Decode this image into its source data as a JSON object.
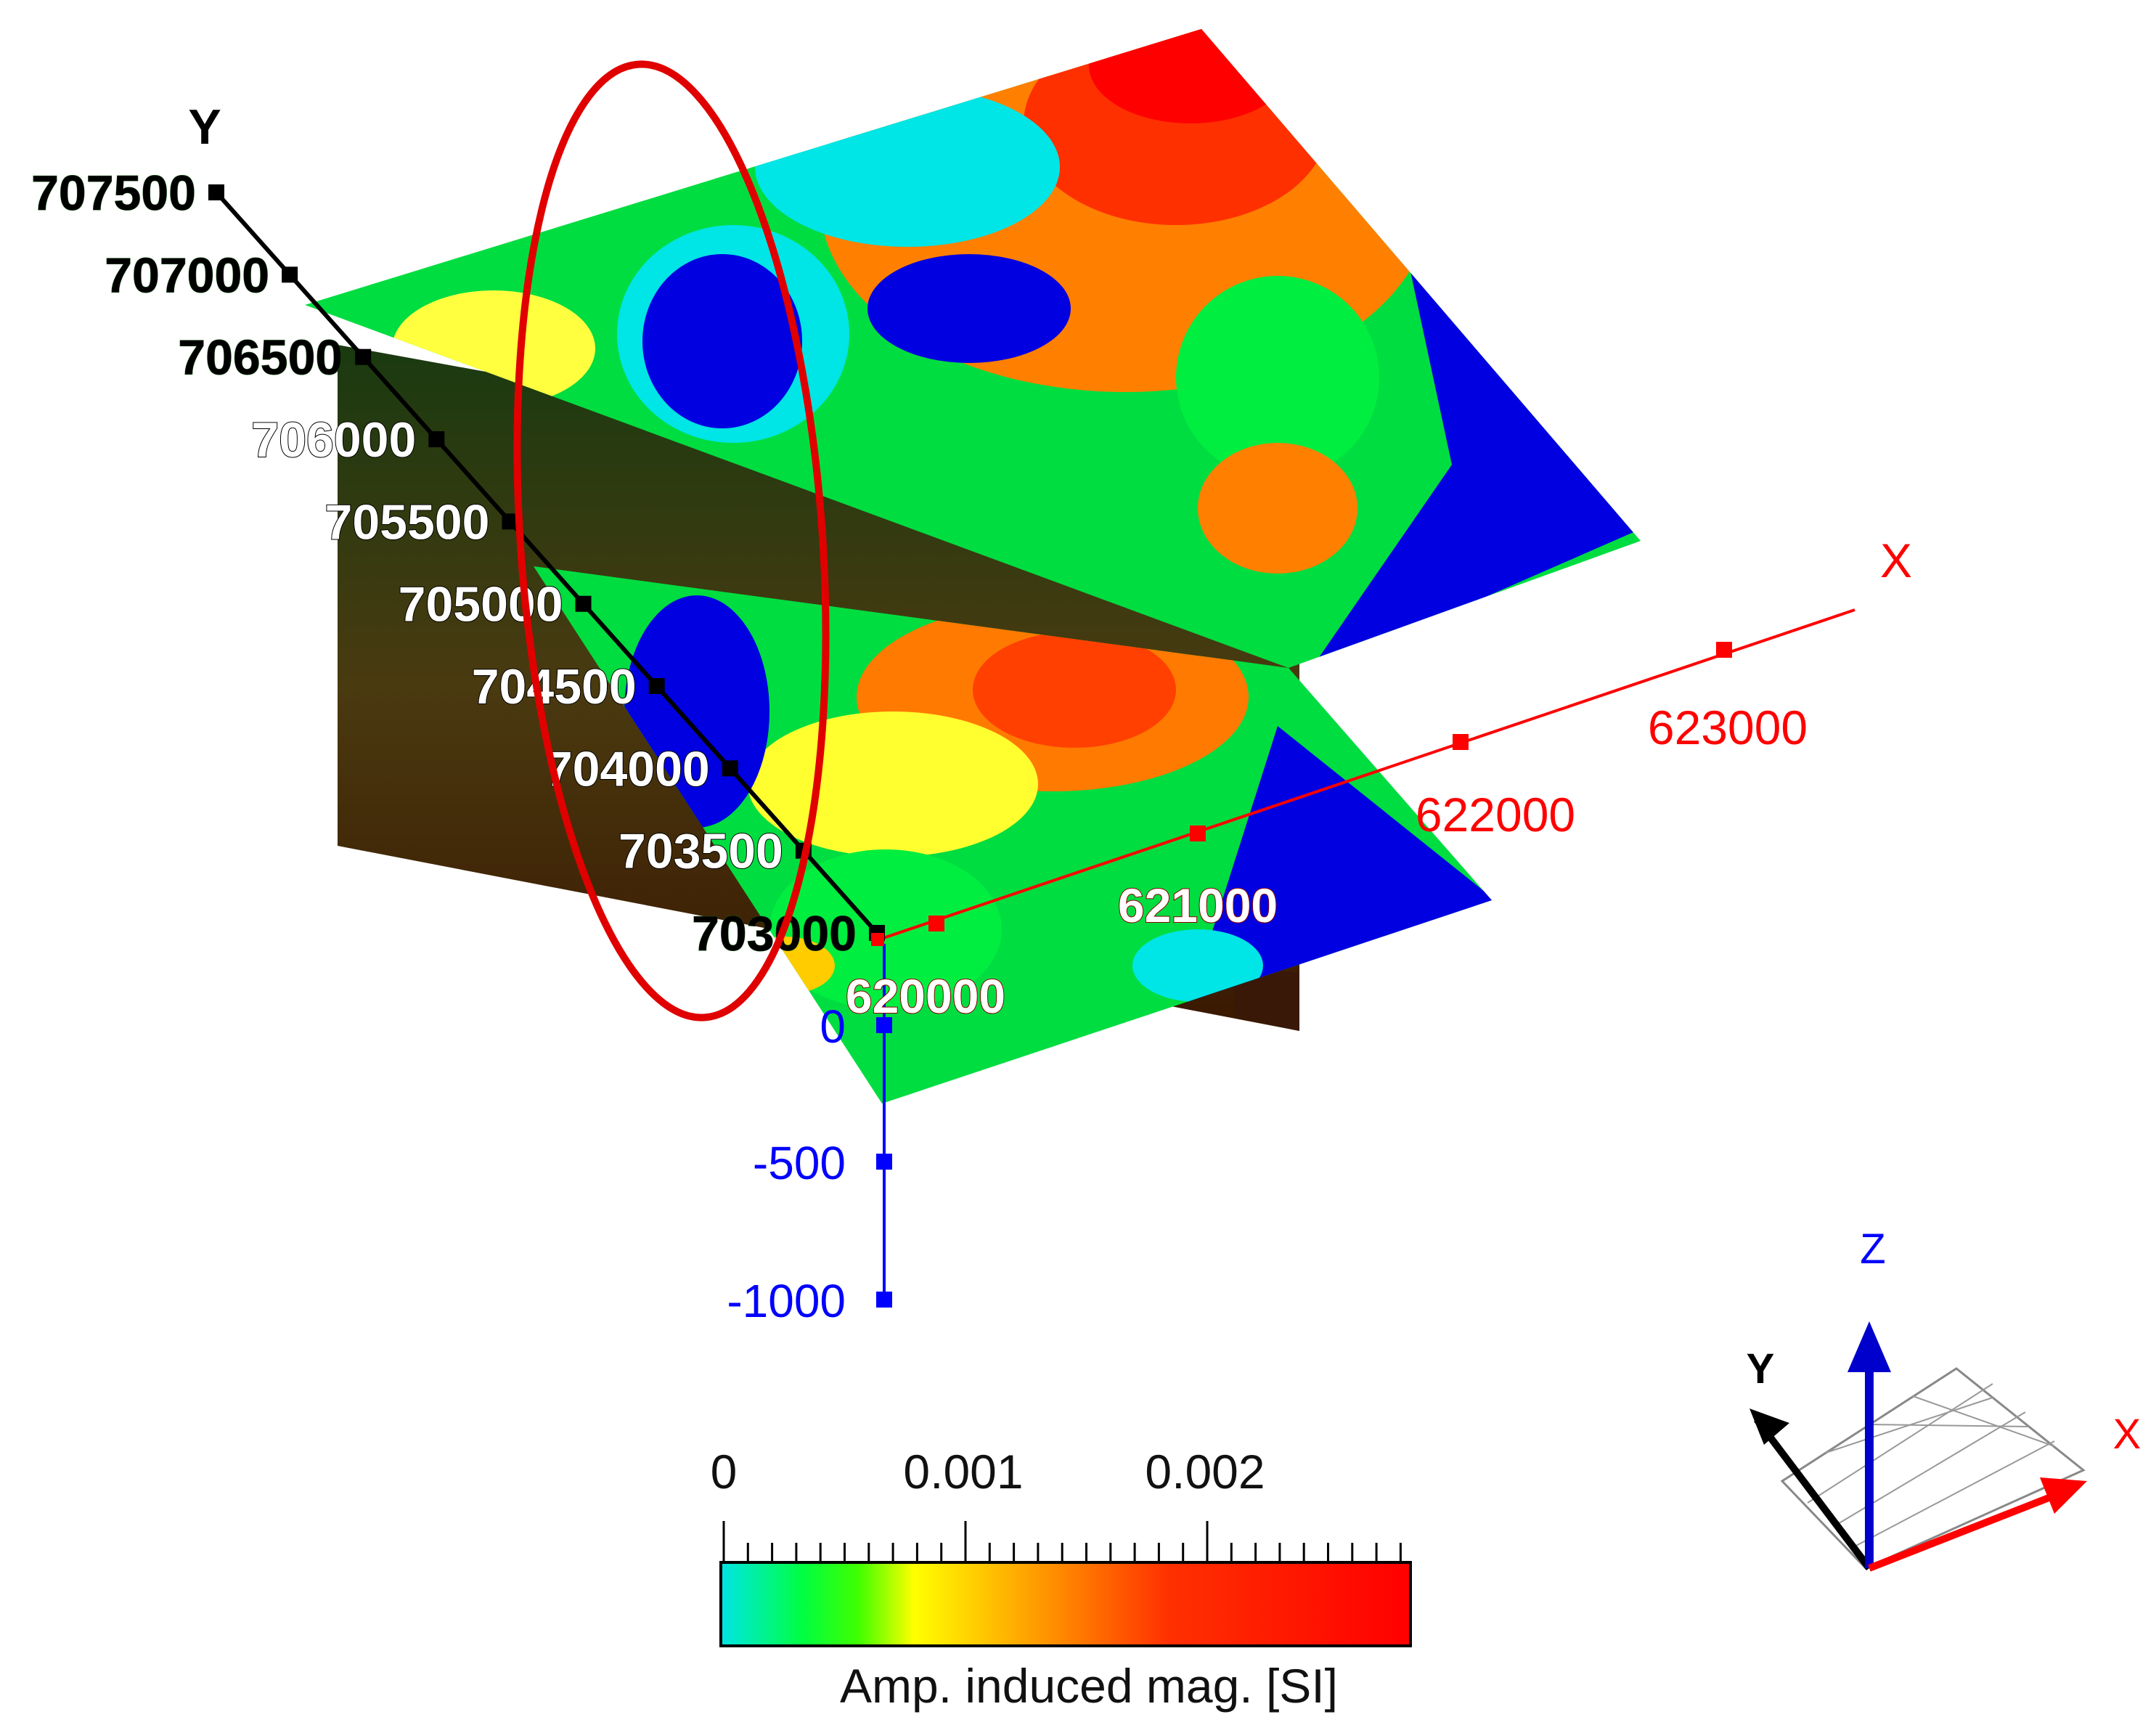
{
  "axes": {
    "y": {
      "label": "Y",
      "color": "#000000",
      "ticks": [
        "707500",
        "707000",
        "706500",
        "706000",
        "705500",
        "705000",
        "704500",
        "704000",
        "703500",
        "703000"
      ]
    },
    "x": {
      "label": "X",
      "color": "#ff0000",
      "ticks": [
        "620000",
        "621000",
        "622000",
        "623000"
      ]
    },
    "z": {
      "color": "#0000ff",
      "ticks": [
        "0",
        "-500",
        "-1000"
      ]
    }
  },
  "colorbar": {
    "ticks": [
      "0",
      "0.001",
      "0.002"
    ],
    "title": "Amp. induced mag.  [SI]",
    "colors": [
      "#00e5e5",
      "#00ff00",
      "#ffff00",
      "#ff8000",
      "#ff0000",
      "#ff0000"
    ]
  },
  "triad": {
    "x_label": "X",
    "y_label": "Y",
    "z_label": "Z"
  },
  "highlight": {
    "color": "#e00000"
  }
}
